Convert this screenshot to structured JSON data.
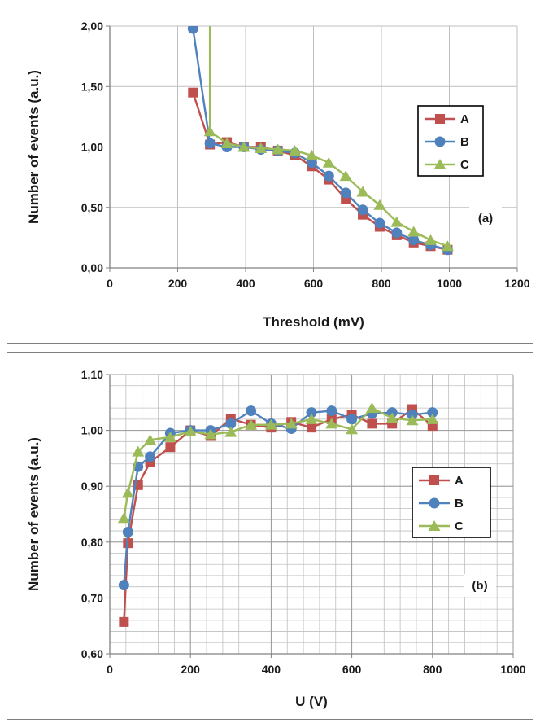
{
  "colors": {
    "A": "#c0504d",
    "B": "#4f81bd",
    "C": "#9bbb59",
    "grid": "#bfbfbf",
    "axis": "#808080"
  },
  "chart_data": [
    {
      "type": "line",
      "panel_label": "(a)",
      "xlabel": "Threshold (mV)",
      "ylabel": "Number of events (a.u.)",
      "xlim": [
        0,
        1200
      ],
      "ylim": [
        0,
        2
      ],
      "x_ticks": [
        0,
        200,
        400,
        600,
        800,
        1000,
        1200
      ],
      "x_tick_labels": [
        "0",
        "200",
        "400",
        "600",
        "800",
        "1000",
        "1200"
      ],
      "y_ticks": [
        0,
        0.5,
        1,
        1.5,
        2
      ],
      "y_tick_labels": [
        "0,00",
        "0,50",
        "1,00",
        "1,50",
        "2,00"
      ],
      "grid": "major vertical and horizontal",
      "legend_position": "right",
      "series": [
        {
          "name": "A",
          "marker": "square",
          "x": [
            245,
            295,
            345,
            395,
            445,
            495,
            545,
            595,
            645,
            695,
            745,
            795,
            845,
            895,
            945,
            995
          ],
          "y": [
            1.45,
            1.02,
            1.04,
            1.0,
            1.0,
            0.97,
            0.93,
            0.84,
            0.73,
            0.57,
            0.44,
            0.34,
            0.27,
            0.21,
            0.18,
            0.15
          ]
        },
        {
          "name": "B",
          "marker": "circle",
          "x": [
            245,
            295,
            345,
            395,
            445,
            495,
            545,
            595,
            645,
            695,
            745,
            795,
            845,
            895,
            945,
            995
          ],
          "y": [
            1.98,
            1.03,
            1.0,
            1.0,
            0.98,
            0.97,
            0.95,
            0.87,
            0.76,
            0.62,
            0.48,
            0.37,
            0.29,
            0.23,
            0.19,
            0.15
          ]
        },
        {
          "name": "C",
          "marker": "triangle",
          "x": [
            295,
            295,
            345,
            395,
            445,
            495,
            545,
            595,
            645,
            695,
            745,
            795,
            845,
            895,
            945,
            995
          ],
          "y": [
            2.05,
            1.13,
            1.03,
            1.0,
            0.99,
            0.98,
            0.97,
            0.93,
            0.87,
            0.76,
            0.63,
            0.52,
            0.38,
            0.3,
            0.23,
            0.18
          ]
        }
      ]
    },
    {
      "type": "line",
      "panel_label": "(b)",
      "xlabel": "U (V)",
      "ylabel": "Number of events (a.u.)",
      "xlim": [
        0,
        1000
      ],
      "ylim": [
        0.6,
        1.1
      ],
      "x_ticks": [
        0,
        200,
        400,
        600,
        800,
        1000
      ],
      "x_tick_labels": [
        "0",
        "200",
        "400",
        "600",
        "800",
        "1000"
      ],
      "y_ticks": [
        0.6,
        0.7,
        0.8,
        0.9,
        1.0,
        1.1
      ],
      "y_tick_labels": [
        "0,60",
        "0,70",
        "0,80",
        "0,90",
        "1,00",
        "1,10"
      ],
      "grid": "major and minor",
      "legend_position": "right",
      "series": [
        {
          "name": "A",
          "marker": "square",
          "x": [
            35,
            45,
            70,
            100,
            150,
            200,
            250,
            300,
            350,
            400,
            450,
            500,
            550,
            600,
            650,
            700,
            750,
            800
          ],
          "y": [
            0.657,
            0.798,
            0.902,
            0.943,
            0.97,
            1.0,
            0.99,
            1.021,
            1.01,
            1.005,
            1.015,
            1.005,
            1.02,
            1.028,
            1.012,
            1.012,
            1.038,
            1.008
          ]
        },
        {
          "name": "B",
          "marker": "circle",
          "x": [
            35,
            45,
            70,
            100,
            150,
            200,
            250,
            300,
            350,
            400,
            450,
            500,
            550,
            600,
            650,
            700,
            750,
            800
          ],
          "y": [
            0.723,
            0.818,
            0.935,
            0.953,
            0.995,
            1.0,
            1.0,
            1.012,
            1.035,
            1.012,
            1.003,
            1.032,
            1.035,
            1.02,
            1.03,
            1.032,
            1.028,
            1.032
          ]
        },
        {
          "name": "C",
          "marker": "triangle",
          "x": [
            35,
            45,
            70,
            100,
            150,
            200,
            250,
            300,
            350,
            400,
            450,
            500,
            550,
            600,
            650,
            700,
            750,
            800
          ],
          "y": [
            0.843,
            0.888,
            0.962,
            0.983,
            0.988,
            0.998,
            0.993,
            0.997,
            1.01,
            1.01,
            1.012,
            1.02,
            1.012,
            1.002,
            1.04,
            1.022,
            1.018,
            1.02
          ]
        }
      ]
    }
  ]
}
